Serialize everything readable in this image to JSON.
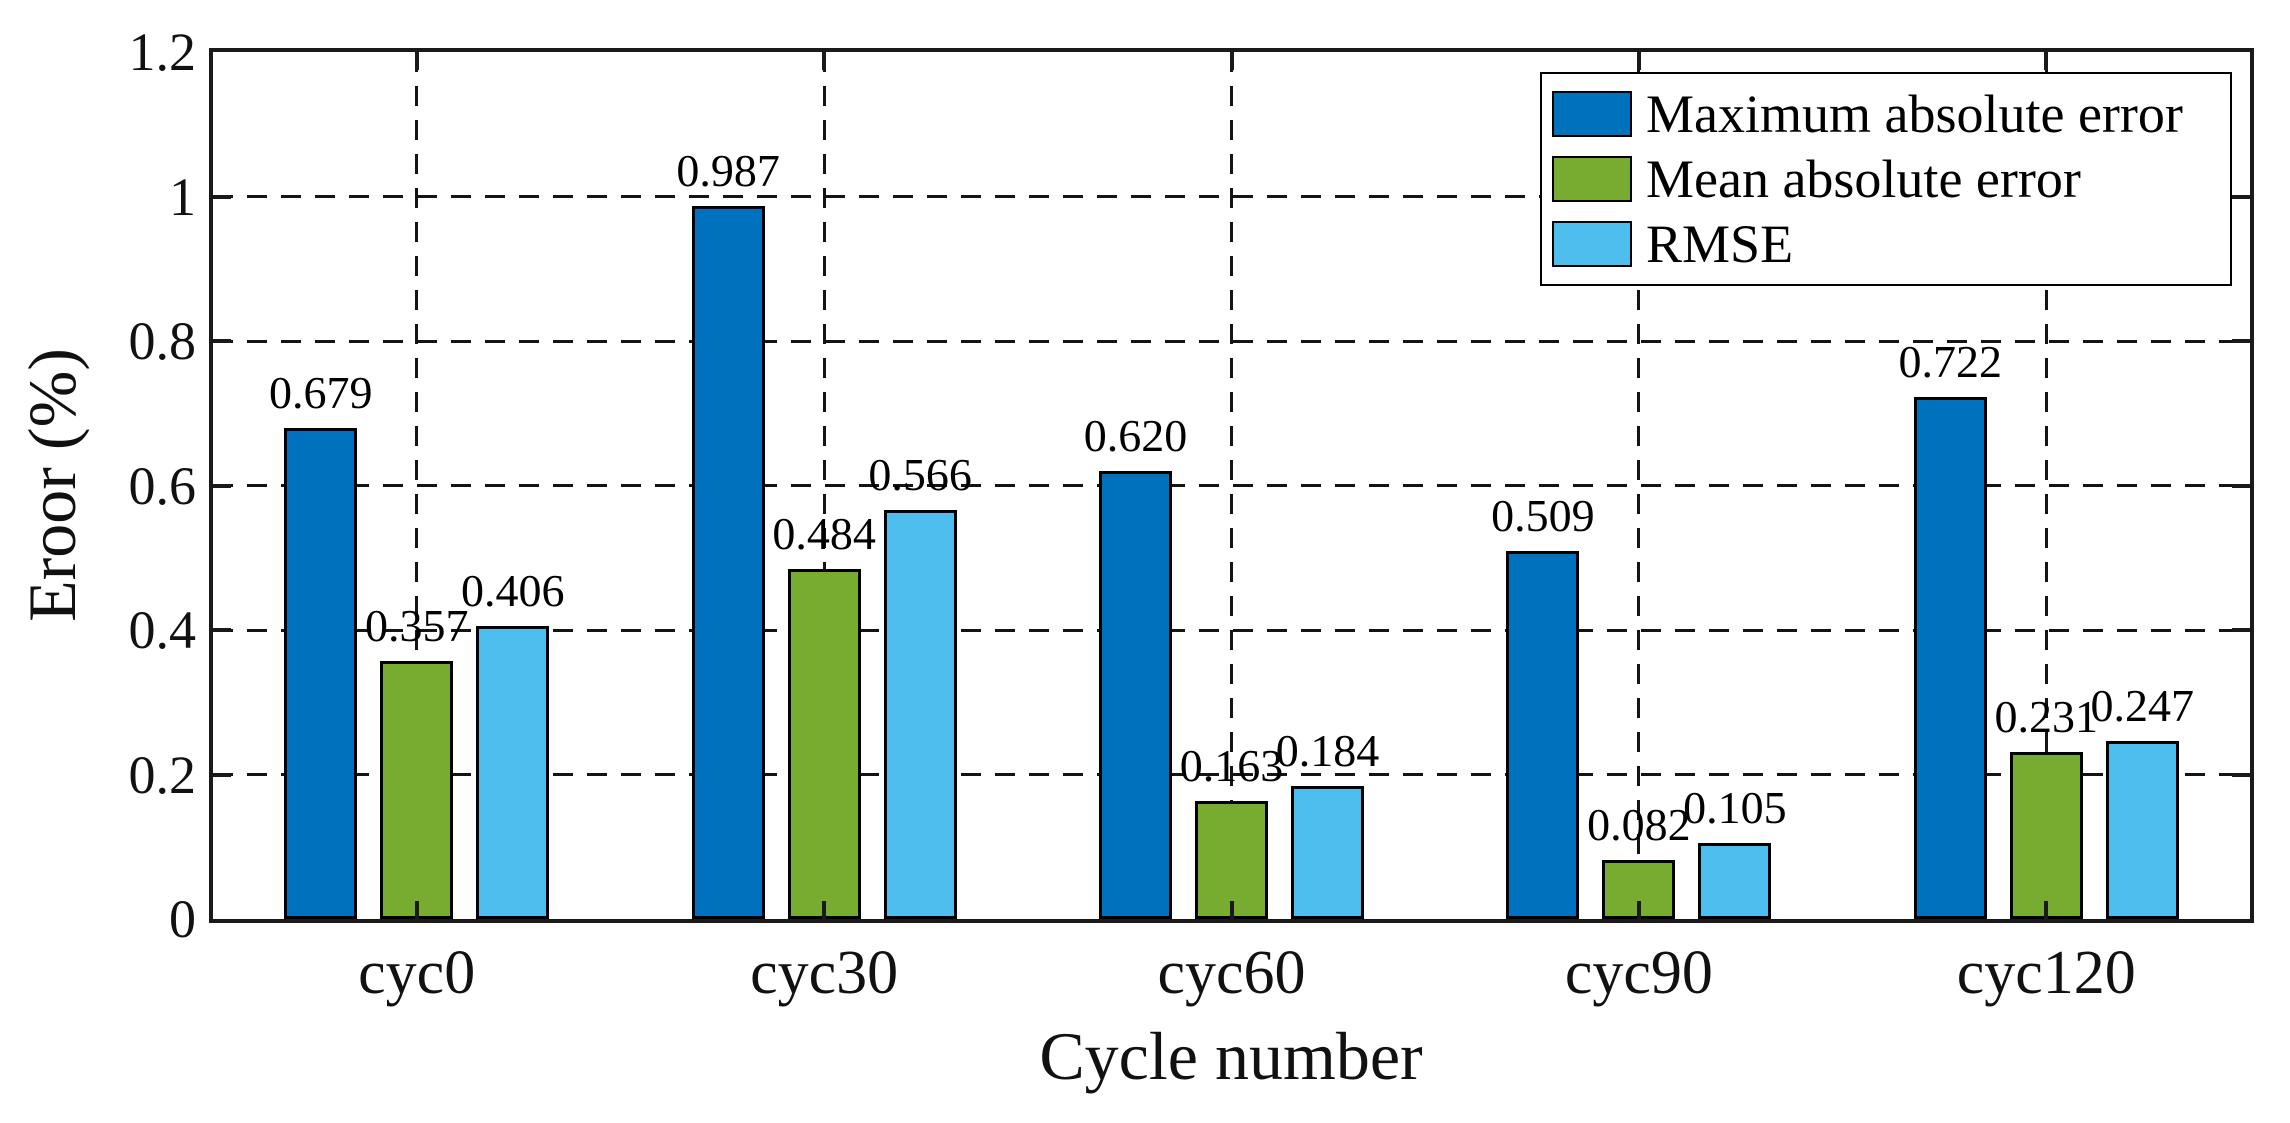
{
  "chart_data": {
    "type": "bar",
    "title": "",
    "xlabel": "Cycle number",
    "ylabel": "Eroor (%)",
    "ylim": [
      0,
      1.2
    ],
    "ytick_values": [
      0,
      0.2,
      0.4,
      0.6,
      0.8,
      1,
      1.2
    ],
    "ytick_labels": [
      "0",
      "0.2",
      "0.4",
      "0.6",
      "0.8",
      "1",
      "1.2"
    ],
    "grid": {
      "horizontal": "dashed",
      "vertical": "dashed-at-category-centers"
    },
    "legend_position": "northeast-inside",
    "categories": [
      "cyc0",
      "cyc30",
      "cyc60",
      "cyc90",
      "cyc120"
    ],
    "series": [
      {
        "name": "Maximum absolute error",
        "color": "#0072BD",
        "values": [
          0.679,
          0.987,
          0.62,
          0.509,
          0.722
        ],
        "labels": [
          "0.679",
          "0.987",
          "0.620",
          "0.509",
          "0.722"
        ]
      },
      {
        "name": "Mean absolute error",
        "color": "#77AC30",
        "values": [
          0.357,
          0.484,
          0.163,
          0.082,
          0.231
        ],
        "labels": [
          "0.357",
          "0.484",
          "0.163",
          "0.082",
          "0.231"
        ]
      },
      {
        "name": "RMSE",
        "color": "#4DBEEE",
        "values": [
          0.406,
          0.566,
          0.184,
          0.105,
          0.247
        ],
        "labels": [
          "0.406",
          "0.566",
          "0.184",
          "0.105",
          "0.247"
        ]
      }
    ]
  }
}
